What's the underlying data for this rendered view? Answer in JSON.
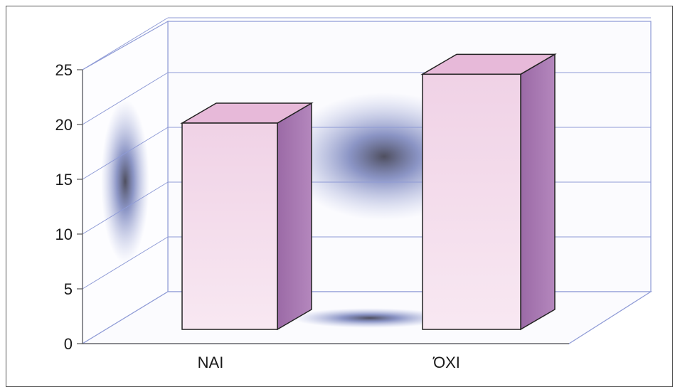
{
  "chart_data": {
    "type": "bar",
    "categories": [
      "NAI",
      "ΌΧΙ"
    ],
    "values": [
      19,
      23.5
    ],
    "ylim": [
      0,
      25
    ],
    "y_ticks": [
      "0",
      "5",
      "10",
      "15",
      "20",
      "25"
    ],
    "grid": true,
    "three_d": true,
    "colors": {
      "bar_front": "#f4dbec",
      "bar_top": "#e7b9d9",
      "bar_side": "#a574ac",
      "axes": "#8f9bd6",
      "walls": "#f7f7fc"
    }
  }
}
